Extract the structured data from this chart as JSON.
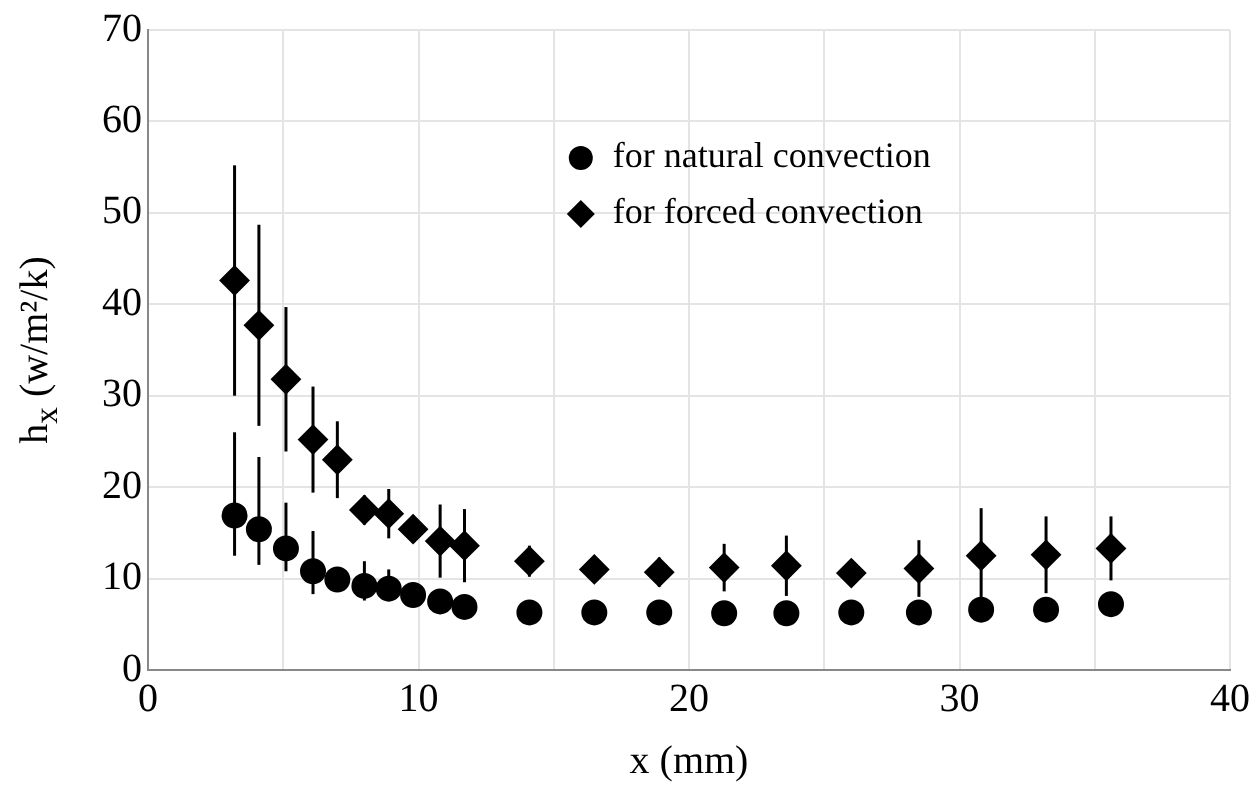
{
  "chart_data": {
    "type": "scatter",
    "xlabel": "x (mm)",
    "ylabel": "h$_{x}$ (w/m²/k)",
    "xlim": [
      0,
      40
    ],
    "ylim": [
      0,
      70
    ],
    "xticks": [
      0,
      {
        "value": 5,
        "label": null
      },
      10,
      {
        "value": 15,
        "label": null
      },
      20,
      {
        "value": 25,
        "label": null
      },
      30,
      {
        "value": 35,
        "label": null
      },
      40
    ],
    "yticks": [
      0,
      10,
      20,
      30,
      40,
      50,
      60,
      70
    ],
    "grid": true,
    "legend": "top right",
    "series": [
      {
        "name": "for natural convection",
        "color": "#000000",
        "marker": "circle",
        "x": [
          3.2,
          4.1,
          5.1,
          6.1,
          7.0,
          8.0,
          8.9,
          9.8,
          10.8,
          11.7,
          14.1,
          16.5,
          18.9,
          21.3,
          23.6,
          26.0,
          28.5,
          30.8,
          33.2,
          35.6
        ],
        "values": [
          16.9,
          15.4,
          13.3,
          10.8,
          9.9,
          9.2,
          8.9,
          8.2,
          7.5,
          6.9,
          6.3,
          6.3,
          6.3,
          6.2,
          6.2,
          6.3,
          6.3,
          6.6,
          6.6,
          7.2
        ],
        "errors": [
          [
            12.5,
            26.0
          ],
          [
            11.5,
            23.3
          ],
          [
            10.8,
            18.3
          ],
          [
            8.3,
            15.2
          ],
          null,
          [
            7.6,
            11.9
          ],
          [
            7.7,
            11.0
          ],
          null,
          null,
          null,
          null,
          null,
          null,
          null,
          null,
          null,
          null,
          null,
          null,
          null
        ]
      },
      {
        "name": "for forced convection",
        "color": "#000000",
        "marker": "diamond",
        "x": [
          3.2,
          4.1,
          5.1,
          6.1,
          7.0,
          8.0,
          8.9,
          9.8,
          10.8,
          11.7,
          14.1,
          16.5,
          18.9,
          21.3,
          23.6,
          26.0,
          28.5,
          30.8,
          33.2,
          35.6
        ],
        "values": [
          42.6,
          37.7,
          31.8,
          25.2,
          23.0,
          17.5,
          17.1,
          15.4,
          14.1,
          13.6,
          11.9,
          11.0,
          10.7,
          11.2,
          11.4,
          10.6,
          11.1,
          12.5,
          12.6,
          13.3
        ],
        "errors": [
          12.6,
          11,
          7.9,
          5.8,
          4.2,
          1.6,
          2.7,
          1.5,
          4,
          4,
          1.7,
          null,
          1.6,
          2.6,
          3.3,
          1.4,
          3.1,
          5.2,
          4.2,
          3.5
        ]
      }
    ]
  }
}
